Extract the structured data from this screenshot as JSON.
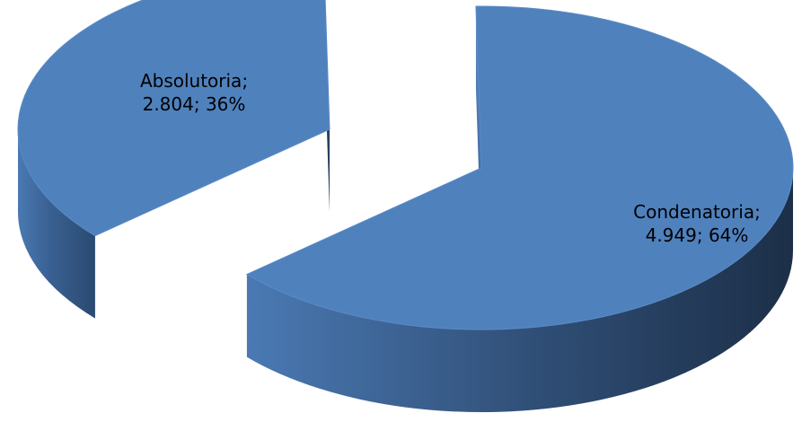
{
  "chart_data": {
    "type": "pie",
    "style": "3d-exploded",
    "title": "",
    "slices": [
      {
        "category": "Condenatoria",
        "value": 4949,
        "value_label": "4.949",
        "percent": 64,
        "percent_label": "64%"
      },
      {
        "category": "Absolutoria",
        "value": 2804,
        "value_label": "2.804",
        "percent": 36,
        "percent_label": "36%"
      }
    ],
    "labels": [
      {
        "line1": "Condenatoria;",
        "line2": "4.949; 64%"
      },
      {
        "line1": "Absolutoria;",
        "line2": "2.804; 36%"
      }
    ],
    "colors": {
      "top": "#4f81bd",
      "side_light": "#426ea3",
      "side_dark": "#1f3550",
      "edge": "#5a8bc7"
    },
    "legend": "none"
  }
}
